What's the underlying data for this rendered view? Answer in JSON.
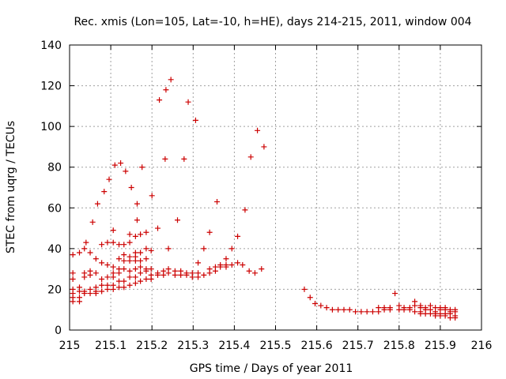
{
  "chart_data": {
    "type": "scatter",
    "title": "Rec. xmis (Lon=105, Lat=-10, h=HE), days 214-215, 2011, window 004",
    "xlabel": "GPS time / Days of year 2011",
    "ylabel": "STEC from uqrg / TECUs",
    "xlim": [
      215,
      216
    ],
    "ylim": [
      0,
      140
    ],
    "x_ticks": [
      215,
      215.1,
      215.2,
      215.3,
      215.4,
      215.5,
      215.6,
      215.7,
      215.8,
      215.9,
      216
    ],
    "x_tick_labels": [
      "215",
      "215.1",
      "215.2",
      "215.3",
      "215.4",
      "215.5",
      "215.6",
      "215.7",
      "215.8",
      "215.9",
      "216"
    ],
    "y_ticks": [
      0,
      20,
      40,
      60,
      80,
      100,
      120,
      140
    ],
    "y_tick_labels": [
      "0",
      "20",
      "40",
      "60",
      "80",
      "100",
      "120",
      "140"
    ],
    "grid": true,
    "marker": "plus",
    "color": "#cc0000",
    "points": [
      [
        215.008,
        14
      ],
      [
        215.008,
        16
      ],
      [
        215.008,
        18
      ],
      [
        215.008,
        20
      ],
      [
        215.008,
        25
      ],
      [
        215.008,
        28
      ],
      [
        215.008,
        37
      ],
      [
        215.024,
        14
      ],
      [
        215.024,
        16
      ],
      [
        215.024,
        19
      ],
      [
        215.024,
        21
      ],
      [
        215.024,
        38
      ],
      [
        215.036,
        18
      ],
      [
        215.036,
        19
      ],
      [
        215.036,
        26
      ],
      [
        215.036,
        28
      ],
      [
        215.036,
        40
      ],
      [
        215.04,
        43
      ],
      [
        215.05,
        18
      ],
      [
        215.05,
        20
      ],
      [
        215.05,
        27
      ],
      [
        215.05,
        29
      ],
      [
        215.05,
        38
      ],
      [
        215.056,
        53
      ],
      [
        215.064,
        18
      ],
      [
        215.064,
        19
      ],
      [
        215.064,
        21
      ],
      [
        215.064,
        28
      ],
      [
        215.064,
        35
      ],
      [
        215.068,
        62
      ],
      [
        215.078,
        19
      ],
      [
        215.078,
        22
      ],
      [
        215.078,
        25
      ],
      [
        215.078,
        33
      ],
      [
        215.078,
        42
      ],
      [
        215.084,
        68
      ],
      [
        215.092,
        20
      ],
      [
        215.092,
        22
      ],
      [
        215.092,
        26
      ],
      [
        215.092,
        32
      ],
      [
        215.092,
        43
      ],
      [
        215.096,
        74
      ],
      [
        215.106,
        20
      ],
      [
        215.106,
        22
      ],
      [
        215.106,
        26
      ],
      [
        215.106,
        28
      ],
      [
        215.106,
        31
      ],
      [
        215.106,
        43
      ],
      [
        215.106,
        49
      ],
      [
        215.11,
        81
      ],
      [
        215.12,
        21
      ],
      [
        215.12,
        24
      ],
      [
        215.12,
        28
      ],
      [
        215.12,
        30
      ],
      [
        215.12,
        35
      ],
      [
        215.12,
        42
      ],
      [
        215.124,
        82
      ],
      [
        215.132,
        21
      ],
      [
        215.132,
        24
      ],
      [
        215.132,
        30
      ],
      [
        215.132,
        34
      ],
      [
        215.132,
        37
      ],
      [
        215.132,
        42
      ],
      [
        215.136,
        78
      ],
      [
        215.146,
        22
      ],
      [
        215.146,
        26
      ],
      [
        215.146,
        29
      ],
      [
        215.146,
        34
      ],
      [
        215.146,
        36
      ],
      [
        215.146,
        43
      ],
      [
        215.146,
        47
      ],
      [
        215.15,
        70
      ],
      [
        215.16,
        23
      ],
      [
        215.16,
        26
      ],
      [
        215.16,
        30
      ],
      [
        215.16,
        34
      ],
      [
        215.16,
        36
      ],
      [
        215.16,
        38
      ],
      [
        215.16,
        46
      ],
      [
        215.164,
        54
      ],
      [
        215.164,
        62
      ],
      [
        215.172,
        24
      ],
      [
        215.172,
        28
      ],
      [
        215.172,
        31
      ],
      [
        215.172,
        34
      ],
      [
        215.172,
        38
      ],
      [
        215.172,
        47
      ],
      [
        215.176,
        80
      ],
      [
        215.186,
        25
      ],
      [
        215.186,
        29
      ],
      [
        215.186,
        30
      ],
      [
        215.186,
        35
      ],
      [
        215.186,
        40
      ],
      [
        215.186,
        48
      ],
      [
        215.198,
        25
      ],
      [
        215.198,
        27
      ],
      [
        215.198,
        30
      ],
      [
        215.198,
        39
      ],
      [
        215.2,
        66
      ],
      [
        215.214,
        27
      ],
      [
        215.214,
        28
      ],
      [
        215.214,
        50
      ],
      [
        215.218,
        113
      ],
      [
        215.228,
        27
      ],
      [
        215.228,
        29
      ],
      [
        215.232,
        84
      ],
      [
        215.234,
        118
      ],
      [
        215.24,
        28
      ],
      [
        215.24,
        30
      ],
      [
        215.24,
        40
      ],
      [
        215.246,
        123
      ],
      [
        215.256,
        27
      ],
      [
        215.256,
        29
      ],
      [
        215.262,
        54
      ],
      [
        215.27,
        27
      ],
      [
        215.27,
        29
      ],
      [
        215.278,
        84
      ],
      [
        215.284,
        27
      ],
      [
        215.284,
        28
      ],
      [
        215.288,
        112
      ],
      [
        215.298,
        26
      ],
      [
        215.298,
        28
      ],
      [
        215.306,
        103
      ],
      [
        215.312,
        26
      ],
      [
        215.312,
        28
      ],
      [
        215.312,
        33
      ],
      [
        215.326,
        27
      ],
      [
        215.326,
        40
      ],
      [
        215.34,
        28
      ],
      [
        215.34,
        30
      ],
      [
        215.34,
        48
      ],
      [
        215.354,
        29
      ],
      [
        215.354,
        31
      ],
      [
        215.358,
        63
      ],
      [
        215.366,
        31
      ],
      [
        215.366,
        32
      ],
      [
        215.38,
        31
      ],
      [
        215.38,
        32
      ],
      [
        215.38,
        35
      ],
      [
        215.394,
        32
      ],
      [
        215.394,
        40
      ],
      [
        215.408,
        33
      ],
      [
        215.408,
        46
      ],
      [
        215.42,
        32
      ],
      [
        215.426,
        59
      ],
      [
        215.436,
        29
      ],
      [
        215.44,
        85
      ],
      [
        215.45,
        28
      ],
      [
        215.456,
        98
      ],
      [
        215.466,
        30
      ],
      [
        215.472,
        90
      ],
      [
        215.57,
        20
      ],
      [
        215.584,
        16
      ],
      [
        215.596,
        13
      ],
      [
        215.61,
        12
      ],
      [
        215.624,
        11
      ],
      [
        215.638,
        10
      ],
      [
        215.652,
        10
      ],
      [
        215.666,
        10
      ],
      [
        215.68,
        10
      ],
      [
        215.694,
        9
      ],
      [
        215.708,
        9
      ],
      [
        215.722,
        9
      ],
      [
        215.736,
        9
      ],
      [
        215.75,
        9
      ],
      [
        215.75,
        11
      ],
      [
        215.764,
        10
      ],
      [
        215.764,
        11
      ],
      [
        215.778,
        10
      ],
      [
        215.778,
        11
      ],
      [
        215.79,
        18
      ],
      [
        215.8,
        10
      ],
      [
        215.8,
        12
      ],
      [
        215.812,
        10
      ],
      [
        215.812,
        11
      ],
      [
        215.826,
        10
      ],
      [
        215.826,
        11
      ],
      [
        215.838,
        9
      ],
      [
        215.838,
        12
      ],
      [
        215.838,
        14
      ],
      [
        215.852,
        8
      ],
      [
        215.852,
        9
      ],
      [
        215.852,
        11
      ],
      [
        215.852,
        12
      ],
      [
        215.864,
        8
      ],
      [
        215.864,
        10
      ],
      [
        215.864,
        11
      ],
      [
        215.876,
        8
      ],
      [
        215.876,
        10
      ],
      [
        215.876,
        12
      ],
      [
        215.888,
        7
      ],
      [
        215.888,
        8
      ],
      [
        215.888,
        9
      ],
      [
        215.888,
        11
      ],
      [
        215.9,
        7
      ],
      [
        215.9,
        8
      ],
      [
        215.9,
        10
      ],
      [
        215.9,
        11
      ],
      [
        215.912,
        7
      ],
      [
        215.912,
        8
      ],
      [
        215.912,
        10
      ],
      [
        215.912,
        11
      ],
      [
        215.924,
        6
      ],
      [
        215.924,
        8
      ],
      [
        215.924,
        9
      ],
      [
        215.924,
        10
      ],
      [
        215.936,
        6
      ],
      [
        215.936,
        7
      ],
      [
        215.936,
        9
      ],
      [
        215.936,
        10
      ]
    ]
  }
}
